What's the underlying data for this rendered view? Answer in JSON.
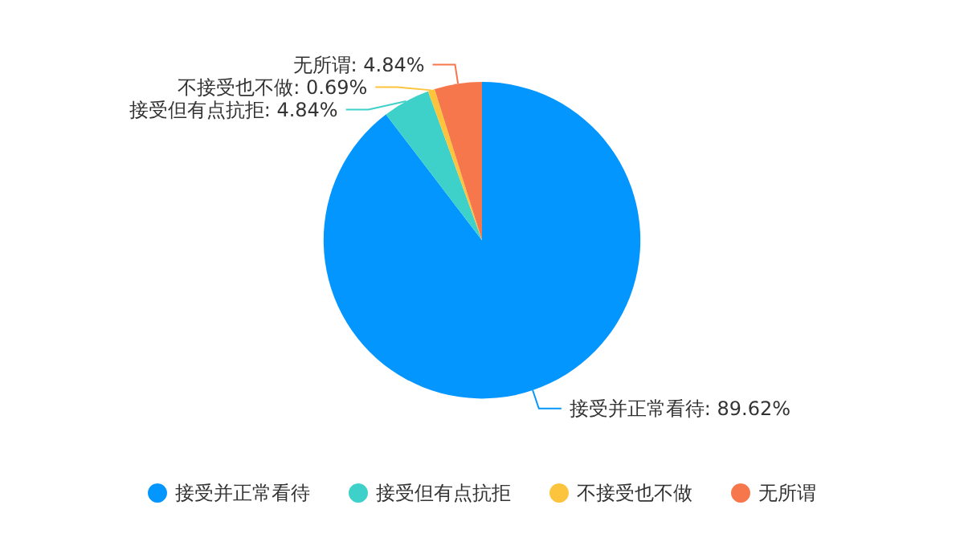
{
  "chart_data": {
    "type": "pie",
    "categories": [
      "接受并正常看待",
      "接受但有点抗拒",
      "不接受也不做",
      "无所谓"
    ],
    "values": [
      89.62,
      4.84,
      0.69,
      4.84
    ],
    "colors": [
      "#0496ff",
      "#3dd1c9",
      "#fcc43c",
      "#f7774d"
    ],
    "value_labels": [
      "接受并正常看待: 89.62%",
      "接受但有点抗拒: 4.84%",
      "不接受也不做: 0.69%",
      "无所谓: 4.84%"
    ],
    "legend": "bottom"
  }
}
